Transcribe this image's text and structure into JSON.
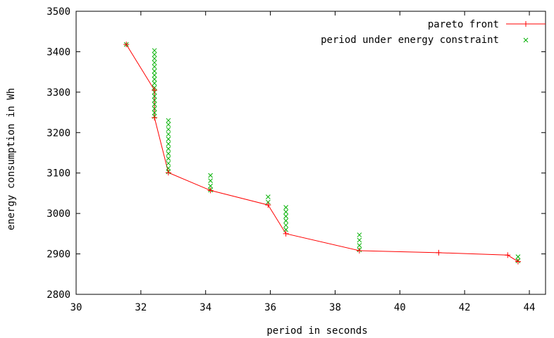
{
  "chart_data": {
    "type": "line",
    "title": "",
    "xlabel": "period in seconds",
    "ylabel": "energy consumption in Wh",
    "xlim": [
      30,
      44.5
    ],
    "ylim": [
      2800,
      3500
    ],
    "x_ticks": [
      30,
      32,
      34,
      36,
      38,
      40,
      42,
      44
    ],
    "y_ticks": [
      2800,
      2900,
      3000,
      3100,
      3200,
      3300,
      3400,
      3500
    ],
    "grid": false,
    "legend_position": "top-right",
    "series": [
      {
        "name": "pareto front",
        "style": "line-plus",
        "color": "#ff0000",
        "x": [
          31.55,
          32.42,
          32.42,
          32.85,
          34.15,
          35.93,
          36.48,
          38.75,
          41.2,
          43.33,
          43.65
        ],
        "y": [
          3418,
          3305,
          3237,
          3101,
          3057,
          3021,
          2950,
          2908,
          2903,
          2897,
          2881
        ]
      },
      {
        "name": "period under energy constraint",
        "style": "x-points",
        "color": "#00b000",
        "points": [
          [
            31.55,
            3418
          ],
          [
            32.42,
            3403
          ],
          [
            32.42,
            3393
          ],
          [
            32.42,
            3383
          ],
          [
            32.42,
            3373
          ],
          [
            32.42,
            3363
          ],
          [
            32.42,
            3352
          ],
          [
            32.42,
            3342
          ],
          [
            32.42,
            3332
          ],
          [
            32.42,
            3322
          ],
          [
            32.42,
            3311
          ],
          [
            32.42,
            3300
          ],
          [
            32.42,
            3290
          ],
          [
            32.42,
            3280
          ],
          [
            32.42,
            3270
          ],
          [
            32.42,
            3259
          ],
          [
            32.42,
            3249
          ],
          [
            32.42,
            3240
          ],
          [
            32.85,
            3230
          ],
          [
            32.85,
            3220
          ],
          [
            32.85,
            3208
          ],
          [
            32.85,
            3196
          ],
          [
            32.85,
            3184
          ],
          [
            32.85,
            3172
          ],
          [
            32.85,
            3160
          ],
          [
            32.85,
            3148
          ],
          [
            32.85,
            3136
          ],
          [
            32.85,
            3124
          ],
          [
            32.85,
            3112
          ],
          [
            32.85,
            3103
          ],
          [
            34.15,
            3094
          ],
          [
            34.15,
            3081
          ],
          [
            34.15,
            3068
          ],
          [
            34.15,
            3058
          ],
          [
            35.93,
            3041
          ],
          [
            35.93,
            3028
          ],
          [
            36.48,
            3015
          ],
          [
            36.48,
            3004
          ],
          [
            36.48,
            2993
          ],
          [
            36.48,
            2982
          ],
          [
            36.48,
            2971
          ],
          [
            36.48,
            2960
          ],
          [
            38.75,
            2947
          ],
          [
            38.75,
            2934
          ],
          [
            38.75,
            2921
          ],
          [
            38.75,
            2910
          ],
          [
            43.65,
            2893
          ],
          [
            43.65,
            2883
          ]
        ]
      }
    ]
  }
}
